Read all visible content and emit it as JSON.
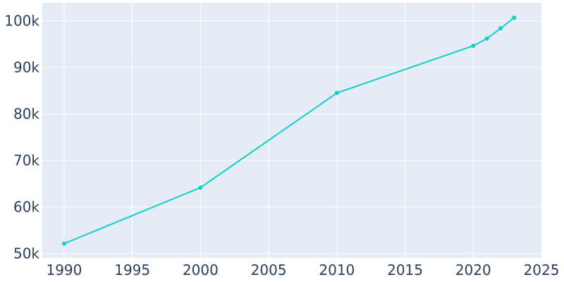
{
  "chart_data": {
    "type": "line",
    "title": "",
    "xlabel": "",
    "ylabel": "",
    "x": [
      1990,
      2000,
      2010,
      2020,
      2021,
      2022,
      2023
    ],
    "series": [
      {
        "values": [
          52100,
          64150,
          84500,
          94650,
          96200,
          98400,
          100700
        ]
      }
    ],
    "xlim": [
      1988.4,
      2025
    ],
    "ylim": [
      49000,
      103900
    ],
    "xticks": [
      1990,
      1995,
      2000,
      2005,
      2010,
      2015,
      2020,
      2025
    ],
    "xtick_labels": [
      "1990",
      "1995",
      "2000",
      "2005",
      "2010",
      "2015",
      "2020",
      "2025"
    ],
    "yticks": [
      50000,
      60000,
      70000,
      80000,
      90000,
      100000
    ],
    "ytick_labels": [
      "50k",
      "60k",
      "70k",
      "80k",
      "90k",
      "100k"
    ],
    "grid": true,
    "legend": "none",
    "colors": {
      "line": "#10cfc9",
      "plot_background": "#e5ecf6",
      "grid": "#ffffff",
      "tick_text": "#2a3f5f"
    }
  }
}
